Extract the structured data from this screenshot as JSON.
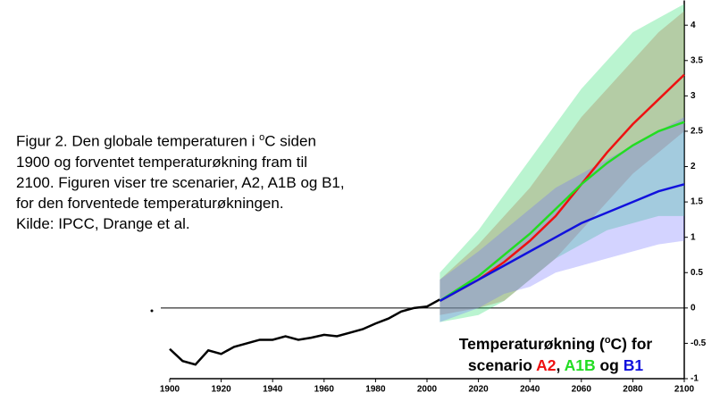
{
  "chart_data": {
    "type": "line",
    "caption": [
      [
        "Figur 2. Den globale temperaturen i ",
        "o",
        "C siden"
      ],
      [
        "1900 og forventet temperaturøkning fram til"
      ],
      [
        "2100. Figuren viser tre scenarier, A2, A1B og B1,"
      ],
      [
        "for den forventede temperaturøkningen."
      ],
      [
        "Kilde: IPCC, Drange et al."
      ]
    ],
    "legend_title": [
      "Temperaturøkning (",
      "o",
      "C) for"
    ],
    "legend_parts": [
      "scenario ",
      ", ",
      " og "
    ],
    "observed": {
      "color": "#000000",
      "x": [
        1900,
        1905,
        1910,
        1915,
        1920,
        1925,
        1930,
        1935,
        1940,
        1945,
        1950,
        1955,
        1960,
        1965,
        1970,
        1975,
        1980,
        1985,
        1990,
        1995,
        2000,
        2005
      ],
      "values": [
        -0.58,
        -0.75,
        -0.8,
        -0.6,
        -0.65,
        -0.55,
        -0.5,
        -0.45,
        -0.45,
        -0.4,
        -0.45,
        -0.42,
        -0.38,
        -0.4,
        -0.35,
        -0.3,
        -0.22,
        -0.15,
        -0.05,
        0.0,
        0.02,
        0.12
      ]
    },
    "series": [
      {
        "name": "A2",
        "color": "#ee1111",
        "band_color": "rgba(230,70,60,0.32)",
        "x": [
          2005,
          2020,
          2030,
          2040,
          2050,
          2060,
          2070,
          2080,
          2090,
          2100
        ],
        "values": [
          0.1,
          0.4,
          0.65,
          0.95,
          1.3,
          1.75,
          2.2,
          2.6,
          2.95,
          3.3
        ],
        "lower": [
          -0.1,
          0.0,
          0.1,
          0.4,
          0.7,
          1.1,
          1.5,
          1.9,
          2.2,
          2.5
        ],
        "upper": [
          0.4,
          0.9,
          1.3,
          1.7,
          2.2,
          2.7,
          3.1,
          3.5,
          3.9,
          4.2
        ]
      },
      {
        "name": "A1B",
        "color": "#22dd22",
        "band_color": "rgba(40,220,110,0.32)",
        "x": [
          2005,
          2020,
          2030,
          2040,
          2050,
          2060,
          2070,
          2080,
          2090,
          2100
        ],
        "values": [
          0.1,
          0.45,
          0.75,
          1.05,
          1.4,
          1.75,
          2.05,
          2.3,
          2.5,
          2.63
        ],
        "lower": [
          -0.2,
          -0.1,
          0.1,
          0.4,
          0.7,
          0.9,
          1.1,
          1.2,
          1.3,
          1.3
        ],
        "upper": [
          0.5,
          1.1,
          1.6,
          2.1,
          2.6,
          3.1,
          3.5,
          3.9,
          4.1,
          4.3
        ]
      },
      {
        "name": "B1",
        "color": "#1111dd",
        "band_color": "rgba(110,110,255,0.3)",
        "x": [
          2005,
          2020,
          2030,
          2040,
          2050,
          2060,
          2070,
          2080,
          2090,
          2100
        ],
        "values": [
          0.1,
          0.4,
          0.6,
          0.8,
          1.0,
          1.2,
          1.35,
          1.5,
          1.65,
          1.75
        ],
        "lower": [
          -0.2,
          0.0,
          0.2,
          0.3,
          0.5,
          0.6,
          0.7,
          0.8,
          0.9,
          0.95
        ],
        "upper": [
          0.4,
          0.8,
          1.1,
          1.4,
          1.7,
          1.9,
          2.1,
          2.3,
          2.5,
          2.7
        ]
      }
    ],
    "xlim": [
      1900,
      2100
    ],
    "xticks": [
      1900,
      1920,
      1940,
      1960,
      1980,
      2000,
      2020,
      2040,
      2060,
      2080,
      2100
    ],
    "ylim": [
      -1,
      4.35
    ],
    "yticks": [
      -1,
      -0.5,
      0,
      0.5,
      1,
      1.5,
      2,
      2.5,
      3,
      3.5,
      4
    ]
  }
}
